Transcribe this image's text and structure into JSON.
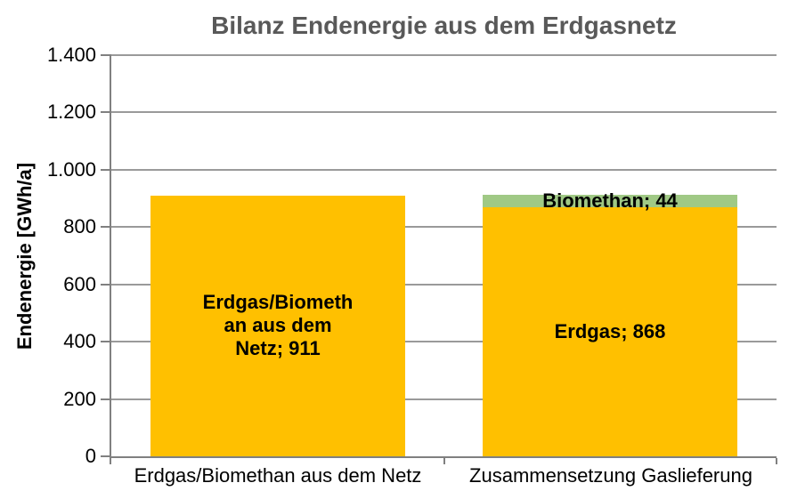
{
  "colors": {
    "title": "#595959",
    "axis": "#808080",
    "grid": "#9a9a9a",
    "text": "#000000",
    "bar_yellow": "#FFC000",
    "bar_green": "#A0C985",
    "background": "#ffffff"
  },
  "chart_data": {
    "type": "bar",
    "stacked": true,
    "title": "Bilanz Endenergie aus dem Erdgasnetz",
    "xlabel": "",
    "ylabel": "Endenergie [GWh/a]",
    "ylim": [
      0,
      1400
    ],
    "ytick_interval": 200,
    "ytick_values": [
      0,
      200,
      400,
      600,
      800,
      1000,
      1200,
      1400
    ],
    "yticks": [
      "0",
      "200",
      "400",
      "600",
      "800",
      "1.000",
      "1.200",
      "1.400"
    ],
    "grid": true,
    "legend_position": "none",
    "categories": [
      "Erdgas/Biomethan aus dem Netz",
      "Zusammensetzung Gaslieferung"
    ],
    "series": [
      {
        "name": "Erdgas/Biomethan aus dem Netz",
        "color": "#FFC000",
        "values": [
          911,
          0
        ],
        "label": "Erdgas/Biometh\nan aus dem\nNetz; 911"
      },
      {
        "name": "Erdgas",
        "color": "#FFC000",
        "values": [
          0,
          868
        ],
        "label": "Erdgas; 868"
      },
      {
        "name": "Biomethan",
        "color": "#A0C985",
        "values": [
          0,
          44
        ],
        "label": "Biomethan; 44"
      }
    ]
  }
}
